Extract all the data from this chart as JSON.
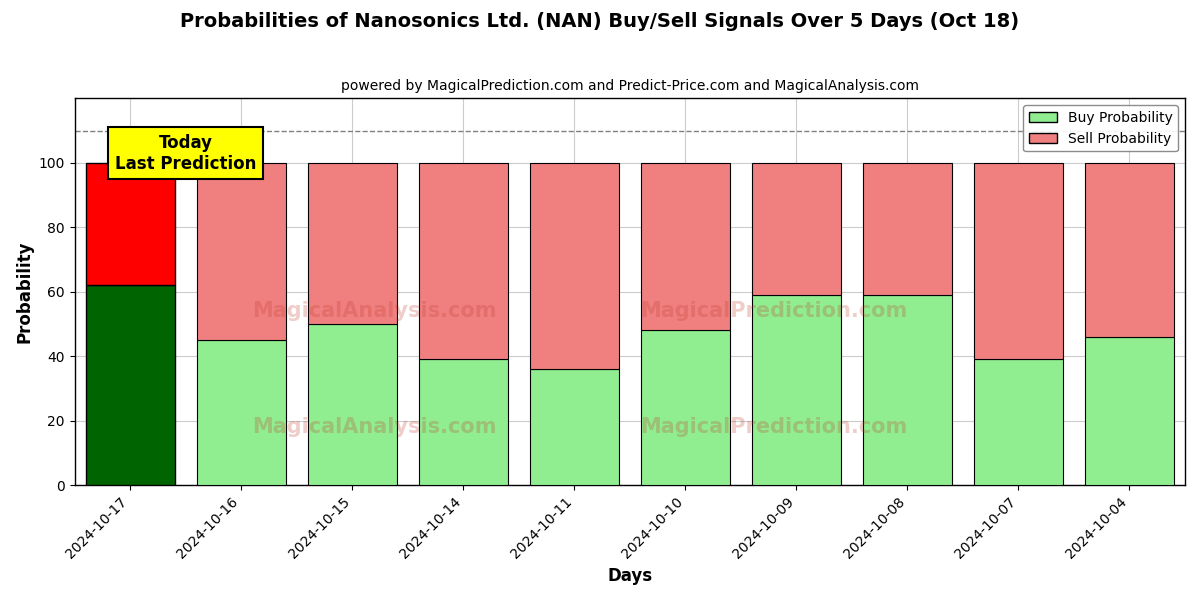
{
  "title": "Probabilities of Nanosonics Ltd. (NAN) Buy/Sell Signals Over 5 Days (Oct 18)",
  "subtitle": "powered by MagicalPrediction.com and Predict-Price.com and MagicalAnalysis.com",
  "xlabel": "Days",
  "ylabel": "Probability",
  "dates": [
    "2024-10-17",
    "2024-10-16",
    "2024-10-15",
    "2024-10-14",
    "2024-10-11",
    "2024-10-10",
    "2024-10-09",
    "2024-10-08",
    "2024-10-07",
    "2024-10-04"
  ],
  "buy_values": [
    62,
    45,
    50,
    39,
    36,
    48,
    59,
    59,
    39,
    46
  ],
  "sell_values": [
    38,
    55,
    50,
    61,
    64,
    52,
    41,
    41,
    61,
    54
  ],
  "today_buy_color": "#006400",
  "today_sell_color": "#FF0000",
  "buy_color": "#90EE90",
  "sell_color": "#F08080",
  "today_bar_edgecolor": "black",
  "bar_edgecolor": "black",
  "ylim": [
    0,
    120
  ],
  "yticks": [
    0,
    20,
    40,
    60,
    80,
    100
  ],
  "dashed_line_y": 110,
  "annotation_text": "Today\nLast Prediction",
  "annotation_bg": "#FFFF00",
  "legend_buy_label": "Buy Probability",
  "legend_sell_label": "Sell Probability",
  "background_color": "#ffffff",
  "grid_color": "#cccccc",
  "bar_width": 0.8
}
